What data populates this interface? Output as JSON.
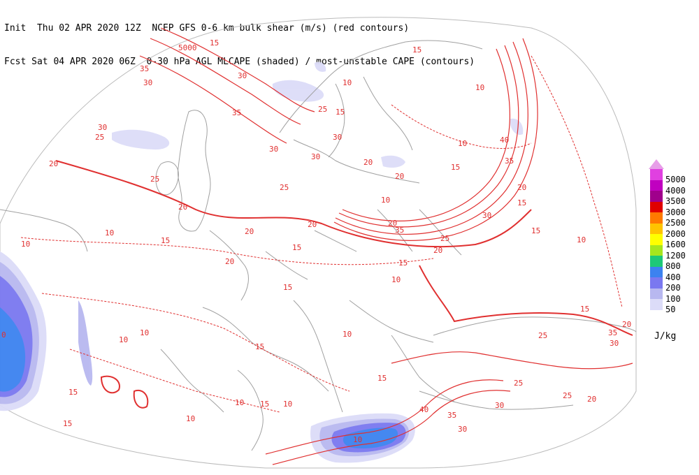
{
  "header": {
    "line1": "Init  Thu 02 APR 2020 12Z  NCEP GFS 0-6 km bulk shear (m/s) (red contours)",
    "line2": "Fcst Sat 04 APR 2020 06Z  0-30 hPa AGL MLCAPE (shaded) / most-unstable CAPE (contours)"
  },
  "legend": {
    "unit": "J/kg",
    "levels": [
      {
        "label": "5000",
        "color": "#e040e0"
      },
      {
        "label": "4000",
        "color": "#c000c0"
      },
      {
        "label": "3500",
        "color": "#a0008c"
      },
      {
        "label": "3000",
        "color": "#e00000"
      },
      {
        "label": "2500",
        "color": "#ff7a00"
      },
      {
        "label": "2000",
        "color": "#ffc400"
      },
      {
        "label": "1600",
        "color": "#ffff00"
      },
      {
        "label": "1200",
        "color": "#a6e61e"
      },
      {
        "label": "800",
        "color": "#1ec878"
      },
      {
        "label": "400",
        "color": "#3c82f0"
      },
      {
        "label": "200",
        "color": "#7a78f0"
      },
      {
        "label": "100",
        "color": "#b8b8f0"
      },
      {
        "label": "50",
        "color": "#dcdcf8"
      }
    ]
  },
  "contour_labels": [
    "10",
    "15",
    "20",
    "25",
    "30",
    "35",
    "40"
  ],
  "colors": {
    "shear": "#e03030",
    "coast": "#a0a0a0"
  }
}
